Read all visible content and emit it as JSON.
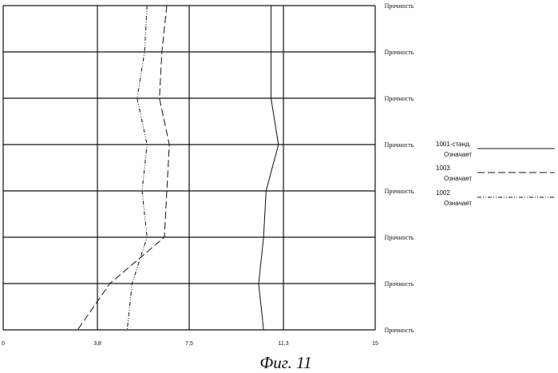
{
  "chart_data": {
    "type": "line",
    "caption": "Фиг. 11",
    "xlim": [
      0,
      15
    ],
    "x_ticks": [
      {
        "value": 0,
        "label": "0"
      },
      {
        "value": 3.8,
        "label": "3,8"
      },
      {
        "value": 7.5,
        "label": "7,5"
      },
      {
        "value": 11.3,
        "label": "11,3"
      },
      {
        "value": 15,
        "label": "15"
      }
    ],
    "grid": true,
    "row_labels": [
      "Прочность",
      "Прочность",
      "Прочность",
      "Прочность",
      "Прочность",
      "Прочность",
      "Прочность",
      "Прочность"
    ],
    "series": [
      {
        "code": "1001",
        "suffix": "-станд.",
        "desc": "Означает",
        "style": "solid",
        "values": [
          10.8,
          10.8,
          10.8,
          11.1,
          10.6,
          10.5,
          10.3,
          10.5
        ]
      },
      {
        "code": "1003",
        "suffix": "",
        "desc": "Означает",
        "style": "dashed",
        "values": [
          6.6,
          6.4,
          6.3,
          6.7,
          6.6,
          6.5,
          4.3,
          3.0
        ]
      },
      {
        "code": "1002",
        "suffix": "",
        "desc": "Означает",
        "style": "dashdotdot",
        "values": [
          5.8,
          5.7,
          5.4,
          5.8,
          5.6,
          5.8,
          5.2,
          5.0
        ]
      }
    ],
    "legend_position": "right"
  }
}
